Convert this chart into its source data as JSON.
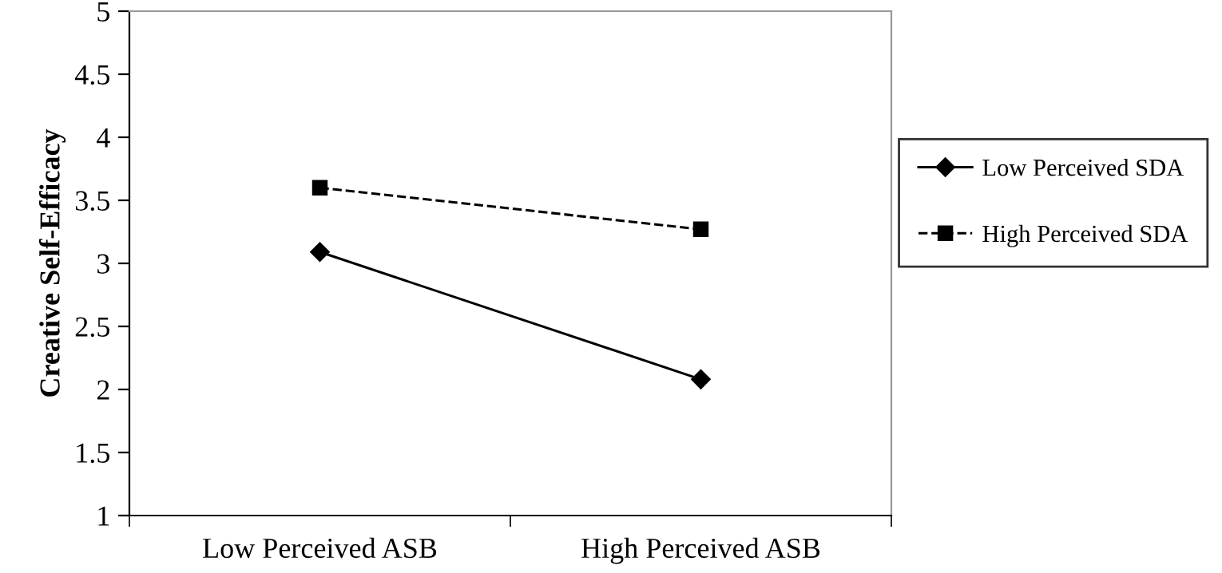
{
  "chart_data": {
    "type": "line",
    "ylabel": "Creative Self-Efficacy",
    "categories": [
      "Low Perceived ASB",
      "High Perceived ASB"
    ],
    "series": [
      {
        "name": "Low Perceived SDA",
        "color": "#000000",
        "values": [
          3.09,
          2.08
        ],
        "marker": "diamond",
        "line_style": "solid"
      },
      {
        "name": "High Perceived SDA",
        "color": "#000000",
        "values": [
          3.6,
          3.27
        ],
        "marker": "square",
        "line_style": "dashed"
      }
    ],
    "ylim": [
      1,
      5
    ],
    "yticks": [
      1,
      1.5,
      2,
      2.5,
      3,
      3.5,
      4,
      4.5,
      5
    ],
    "grid": false,
    "legend": "right"
  }
}
